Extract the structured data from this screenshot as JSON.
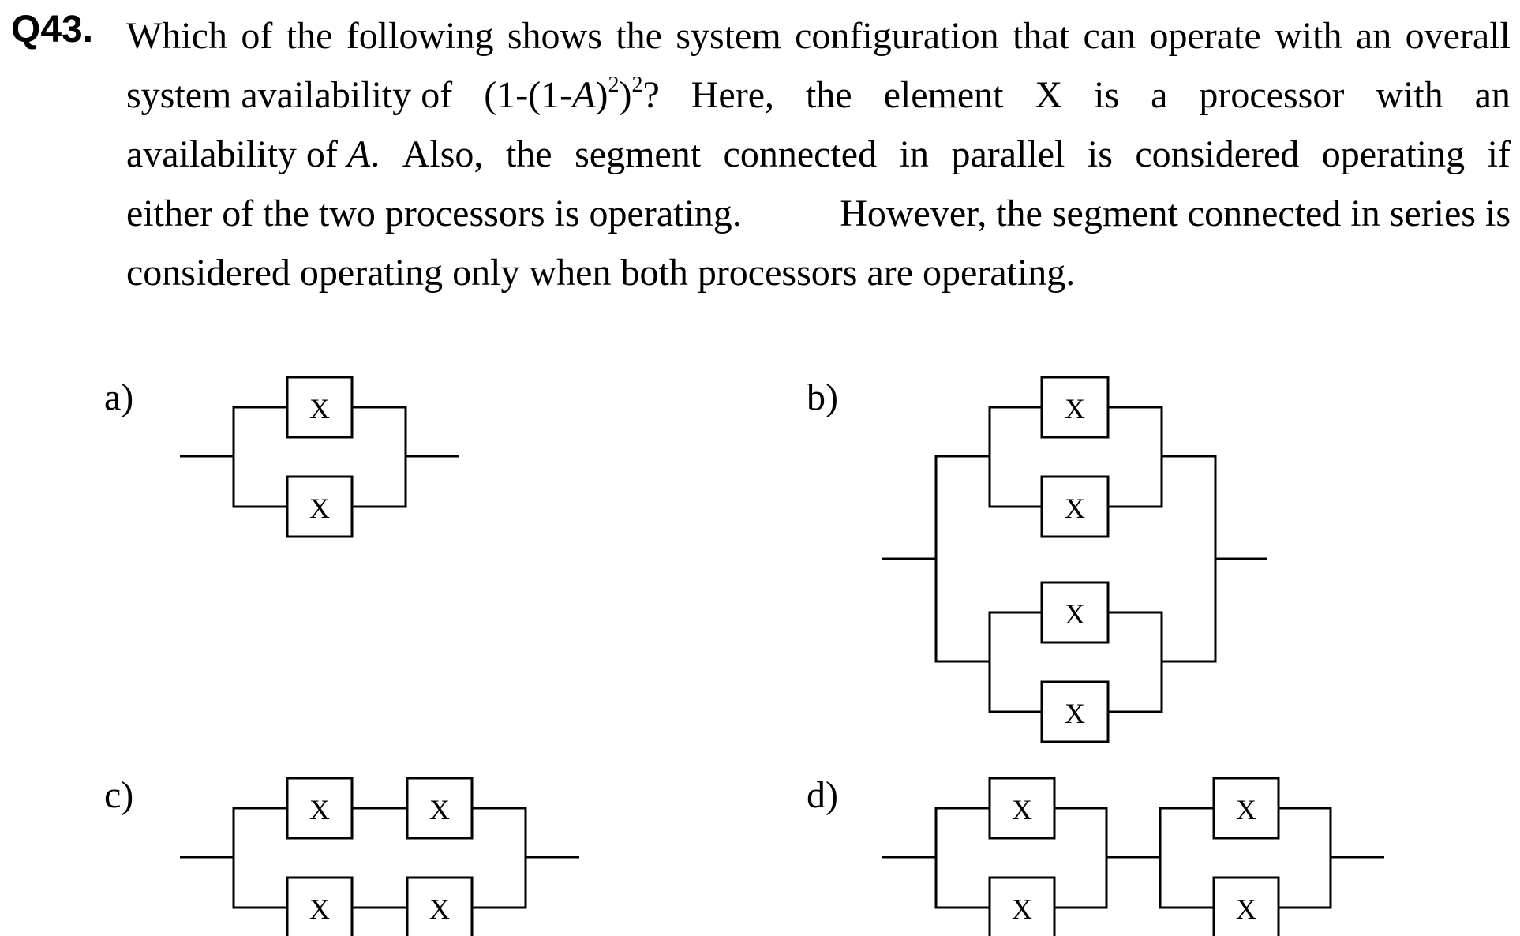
{
  "question": {
    "number": "Q43.",
    "line1": [
      "Which",
      "of",
      "the",
      "following",
      "shows",
      "the",
      "system",
      "configuration",
      "that",
      "can",
      "operate",
      "with",
      "an",
      "overall"
    ],
    "line2": {
      "start": "system availability of",
      "formula_open": "(1-(1-",
      "var": "A",
      "close1": ")",
      "sup1": "2",
      "close2": ")",
      "sup2": "2",
      "qmark": "?",
      "rest": [
        "Here,",
        "the",
        "element",
        "X",
        "is",
        "a",
        "processor",
        "with",
        "an"
      ]
    },
    "line3": {
      "start": "availability of",
      "var": "A",
      "period": ".",
      "rest": [
        "Also,",
        "the",
        "segment",
        "connected",
        "in",
        "parallel",
        "is",
        "considered",
        "operating",
        "if"
      ]
    },
    "line4": [
      "either of the two processors is operating.",
      "However, the segment connected in series is"
    ],
    "line5": "considered operating only when both processors are operating."
  },
  "options": [
    {
      "label": "a)"
    },
    {
      "label": "b)"
    },
    {
      "label": "c)"
    },
    {
      "label": "d)"
    }
  ],
  "element_label": "X"
}
